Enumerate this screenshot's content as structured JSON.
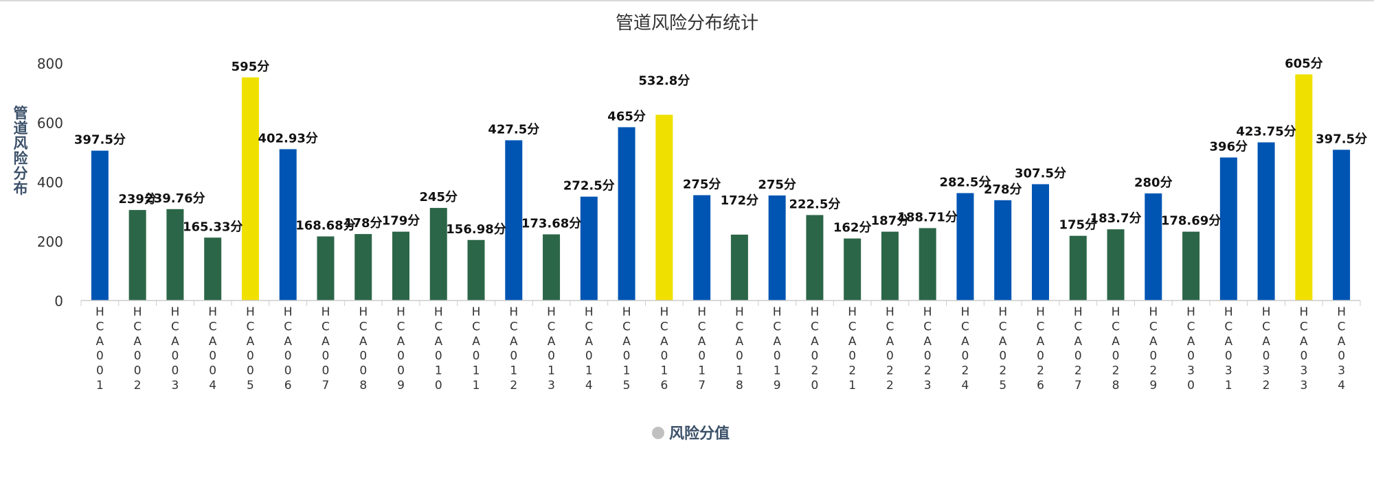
{
  "chart_data": {
    "type": "bar",
    "title": "管道风险分布统计",
    "ylabel": "管道风险分布",
    "xlabel": "",
    "ylim": [
      0,
      800
    ],
    "yticks": [
      0,
      200,
      400,
      600,
      800
    ],
    "value_suffix": "分",
    "grid": false,
    "legend": {
      "position": "bottom-center",
      "label": "风险分值",
      "marker_color": "#c0c0c0"
    },
    "colors": {
      "high": "#f0e000",
      "medium": "#0055b3",
      "low": "#2c6648"
    },
    "categories": [
      "HCA001",
      "HCA002",
      "HCA003",
      "HCA004",
      "HCA005",
      "HCA006",
      "HCA007",
      "HCA008",
      "HCA009",
      "HCA010",
      "HCA011",
      "HCA012",
      "HCA013",
      "HCA014",
      "HCA015",
      "HCA016",
      "HCA017",
      "HCA018",
      "HCA019",
      "HCA020",
      "HCA021",
      "HCA022",
      "HCA023",
      "HCA024",
      "HCA025",
      "HCA026",
      "HCA027",
      "HCA028",
      "HCA029",
      "HCA030",
      "HCA031",
      "HCA032",
      "HCA033",
      "HCA034"
    ],
    "bar_heights": [
      505,
      305,
      308,
      212,
      752,
      510,
      216,
      224,
      232,
      312,
      204,
      540,
      223,
      350,
      584,
      626,
      355,
      222,
      354,
      288,
      209,
      232,
      244,
      362,
      338,
      392,
      218,
      240,
      361,
      232,
      482,
      533,
      762,
      508
    ],
    "data_labels": [
      "397.5",
      "239",
      "239.76",
      "165.33",
      "595",
      "402.93",
      "168.68",
      "178",
      "179",
      "245",
      "156.98",
      "427.5",
      "173.68",
      "272.5",
      "465",
      "532.8",
      "275",
      "172",
      "275",
      "222.5",
      "162",
      "187",
      "188.71",
      "282.5",
      "278",
      "307.5",
      "175",
      "183.7",
      "280",
      "178.69",
      "396",
      "423.75",
      "605",
      "397.5"
    ],
    "levels": [
      "medium",
      "low",
      "low",
      "low",
      "high",
      "medium",
      "low",
      "low",
      "low",
      "low",
      "low",
      "medium",
      "low",
      "medium",
      "medium",
      "high",
      "medium",
      "low",
      "medium",
      "low",
      "low",
      "low",
      "low",
      "medium",
      "medium",
      "medium",
      "low",
      "low",
      "medium",
      "low",
      "medium",
      "medium",
      "high",
      "medium"
    ],
    "label_raise": [
      0,
      0,
      0,
      0,
      0,
      0,
      0,
      0,
      0,
      0,
      0,
      0,
      0,
      0,
      0,
      1,
      0,
      1,
      0,
      0,
      0,
      0,
      0,
      0,
      0,
      0,
      0,
      0,
      0,
      0,
      0,
      0,
      0,
      0
    ]
  }
}
